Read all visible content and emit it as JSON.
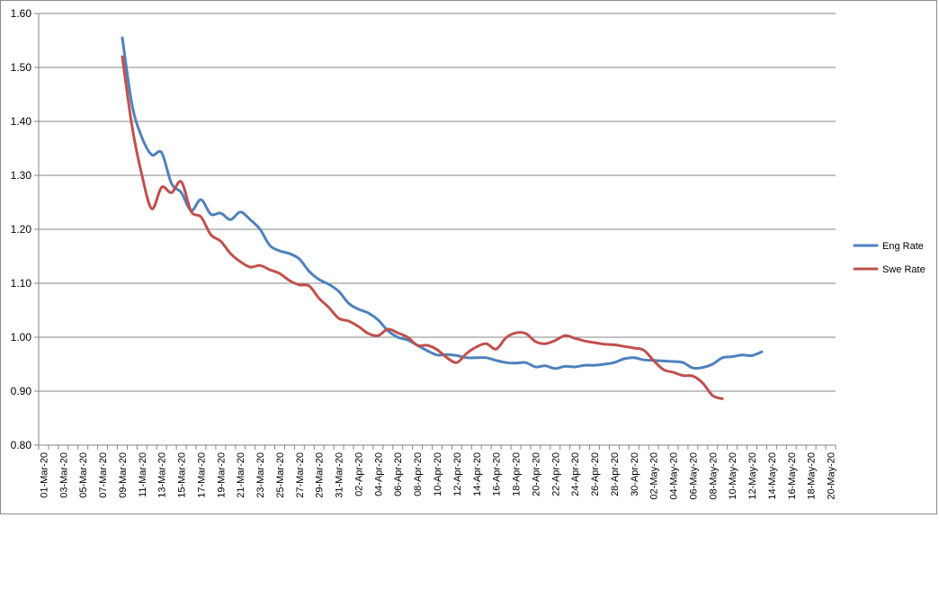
{
  "chart_data": {
    "type": "line",
    "title": "",
    "xlabel": "",
    "ylabel": "",
    "ylim": [
      0.8,
      1.6
    ],
    "y_ticks": [
      "0.80",
      "0.90",
      "1.00",
      "1.10",
      "1.20",
      "1.30",
      "1.40",
      "1.50",
      "1.60"
    ],
    "grid": true,
    "legend_position": "right",
    "x": [
      "01-Mar-20",
      "02-Mar-20",
      "03-Mar-20",
      "04-Mar-20",
      "05-Mar-20",
      "06-Mar-20",
      "07-Mar-20",
      "08-Mar-20",
      "09-Mar-20",
      "10-Mar-20",
      "11-Mar-20",
      "12-Mar-20",
      "13-Mar-20",
      "14-Mar-20",
      "15-Mar-20",
      "16-Mar-20",
      "17-Mar-20",
      "18-Mar-20",
      "19-Mar-20",
      "20-Mar-20",
      "21-Mar-20",
      "22-Mar-20",
      "23-Mar-20",
      "24-Mar-20",
      "25-Mar-20",
      "26-Mar-20",
      "27-Mar-20",
      "28-Mar-20",
      "29-Mar-20",
      "30-Mar-20",
      "31-Mar-20",
      "01-Apr-20",
      "02-Apr-20",
      "03-Apr-20",
      "04-Apr-20",
      "05-Apr-20",
      "06-Apr-20",
      "07-Apr-20",
      "08-Apr-20",
      "09-Apr-20",
      "10-Apr-20",
      "11-Apr-20",
      "12-Apr-20",
      "13-Apr-20",
      "14-Apr-20",
      "15-Apr-20",
      "16-Apr-20",
      "17-Apr-20",
      "18-Apr-20",
      "19-Apr-20",
      "20-Apr-20",
      "21-Apr-20",
      "22-Apr-20",
      "23-Apr-20",
      "24-Apr-20",
      "25-Apr-20",
      "26-Apr-20",
      "27-Apr-20",
      "28-Apr-20",
      "29-Apr-20",
      "30-Apr-20",
      "01-May-20",
      "02-May-20",
      "03-May-20",
      "04-May-20",
      "05-May-20",
      "06-May-20",
      "07-May-20",
      "08-May-20",
      "09-May-20",
      "10-May-20",
      "11-May-20",
      "12-May-20",
      "13-May-20",
      "14-May-20",
      "15-May-20",
      "16-May-20",
      "17-May-20",
      "18-May-20",
      "19-May-20",
      "20-May-20"
    ],
    "x_tick_labels": [
      "01-Mar-20",
      "03-Mar-20",
      "05-Mar-20",
      "07-Mar-20",
      "09-Mar-20",
      "11-Mar-20",
      "13-Mar-20",
      "15-Mar-20",
      "17-Mar-20",
      "19-Mar-20",
      "21-Mar-20",
      "23-Mar-20",
      "25-Mar-20",
      "27-Mar-20",
      "29-Mar-20",
      "31-Mar-20",
      "02-Apr-20",
      "04-Apr-20",
      "06-Apr-20",
      "08-Apr-20",
      "10-Apr-20",
      "12-Apr-20",
      "14-Apr-20",
      "16-Apr-20",
      "18-Apr-20",
      "20-Apr-20",
      "22-Apr-20",
      "24-Apr-20",
      "26-Apr-20",
      "28-Apr-20",
      "30-Apr-20",
      "02-May-20",
      "04-May-20",
      "06-May-20",
      "08-May-20",
      "10-May-20",
      "12-May-20",
      "14-May-20",
      "16-May-20",
      "18-May-20",
      "20-May-20"
    ],
    "series": [
      {
        "name": "Eng Rate",
        "color": "#4f81bd",
        "values": [
          null,
          null,
          null,
          null,
          null,
          null,
          null,
          null,
          1.555,
          1.43,
          1.37,
          1.338,
          1.342,
          1.285,
          1.268,
          1.235,
          1.255,
          1.228,
          1.23,
          1.218,
          1.232,
          1.218,
          1.2,
          1.17,
          1.16,
          1.155,
          1.145,
          1.122,
          1.107,
          1.098,
          1.085,
          1.063,
          1.052,
          1.045,
          1.032,
          1.012,
          1.0,
          0.995,
          0.985,
          0.975,
          0.967,
          0.968,
          0.966,
          0.962,
          0.962,
          0.962,
          0.957,
          0.953,
          0.952,
          0.953,
          0.945,
          0.947,
          0.942,
          0.946,
          0.945,
          0.948,
          0.948,
          0.95,
          0.953,
          0.96,
          0.962,
          0.958,
          0.957,
          0.956,
          0.955,
          0.953,
          0.943,
          0.944,
          0.95,
          0.962,
          0.964,
          0.967,
          0.966,
          0.973,
          null,
          null,
          null,
          null,
          null,
          null,
          null
        ]
      },
      {
        "name": "Swe Rate",
        "color": "#c0504d",
        "values": [
          null,
          null,
          null,
          null,
          null,
          null,
          null,
          null,
          1.52,
          1.39,
          1.3,
          1.238,
          1.278,
          1.268,
          1.288,
          1.233,
          1.223,
          1.19,
          1.178,
          1.155,
          1.14,
          1.13,
          1.133,
          1.125,
          1.118,
          1.105,
          1.097,
          1.095,
          1.072,
          1.055,
          1.035,
          1.03,
          1.02,
          1.007,
          1.003,
          1.015,
          1.008,
          1.0,
          0.985,
          0.985,
          0.977,
          0.962,
          0.953,
          0.97,
          0.982,
          0.988,
          0.978,
          0.999,
          1.008,
          1.007,
          0.992,
          0.988,
          0.994,
          1.003,
          0.998,
          0.993,
          0.99,
          0.987,
          0.986,
          0.983,
          0.98,
          0.976,
          0.957,
          0.94,
          0.935,
          0.929,
          0.928,
          0.915,
          0.892,
          0.886,
          null,
          null,
          null,
          null,
          null,
          null,
          null,
          null,
          null,
          null,
          null
        ]
      }
    ]
  }
}
